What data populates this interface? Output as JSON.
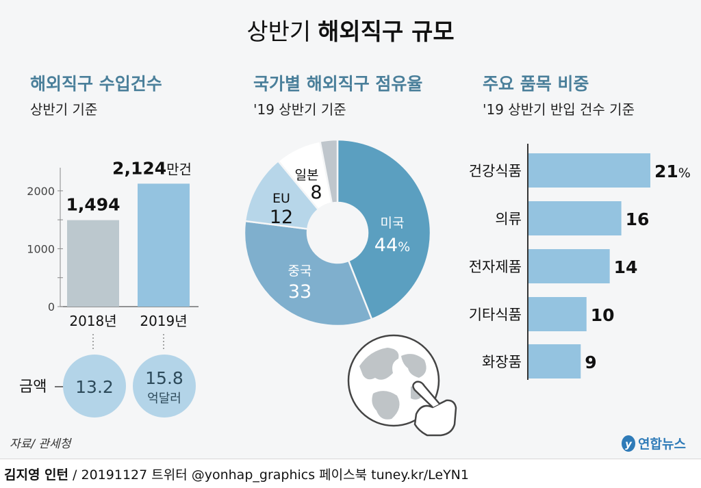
{
  "title": {
    "light": "상반기",
    "bold": "해외직구 규모"
  },
  "colors": {
    "background": "#f5f6f7",
    "accent": "#5b9fc0",
    "bar_gray": "#bcc8ce",
    "bar_blue": "#94c3e0",
    "circle": "#b3d4e8",
    "heading": "#4a7f9a"
  },
  "chart_data": [
    {
      "type": "bar",
      "title": "해외직구 수입건수",
      "subtitle": "상반기 기준",
      "categories": [
        "2018년",
        "2019년"
      ],
      "values": [
        1494,
        2124
      ],
      "value_labels": [
        "1,494",
        "2,124"
      ],
      "unit": "만건",
      "ylim": [
        0,
        2400
      ],
      "yticks": [
        0,
        1000,
        2000
      ],
      "ytick_labels": [
        "0",
        "1000",
        "2000"
      ],
      "amount_label": "금액",
      "amounts": [
        "13.2",
        "15.8"
      ],
      "amount_unit": "억달러"
    },
    {
      "type": "pie",
      "title": "국가별 해외직구 점유율",
      "subtitle": "'19 상반기 기준",
      "slices": [
        {
          "label": "미국",
          "value": 44,
          "value_text": "44",
          "pct": "%"
        },
        {
          "label": "중국",
          "value": 33,
          "value_text": "33",
          "pct": ""
        },
        {
          "label": "EU",
          "value": 12,
          "value_text": "12",
          "pct": ""
        },
        {
          "label": "일본",
          "value": 8,
          "value_text": "8",
          "pct": ""
        },
        {
          "label": "",
          "value": 3,
          "value_text": "",
          "pct": ""
        }
      ]
    },
    {
      "type": "bar",
      "orientation": "horizontal",
      "title": "주요 품목 비중",
      "subtitle": "'19 상반기 반입 건수 기준",
      "categories": [
        "건강식품",
        "의류",
        "전자제품",
        "기타식품",
        "화장품"
      ],
      "values": [
        21,
        16,
        14,
        10,
        9
      ],
      "value_texts": [
        "21",
        "16",
        "14",
        "10",
        "9"
      ],
      "unit_suffix": [
        "%",
        "",
        "",
        "",
        ""
      ]
    }
  ],
  "source": "자료/ 관세청",
  "logo": "연합뉴스",
  "footer": {
    "author": "김지영 인턴",
    "rest": " / 20191127  트위터 @yonhap_graphics  페이스북 tuney.kr/LeYN1"
  }
}
